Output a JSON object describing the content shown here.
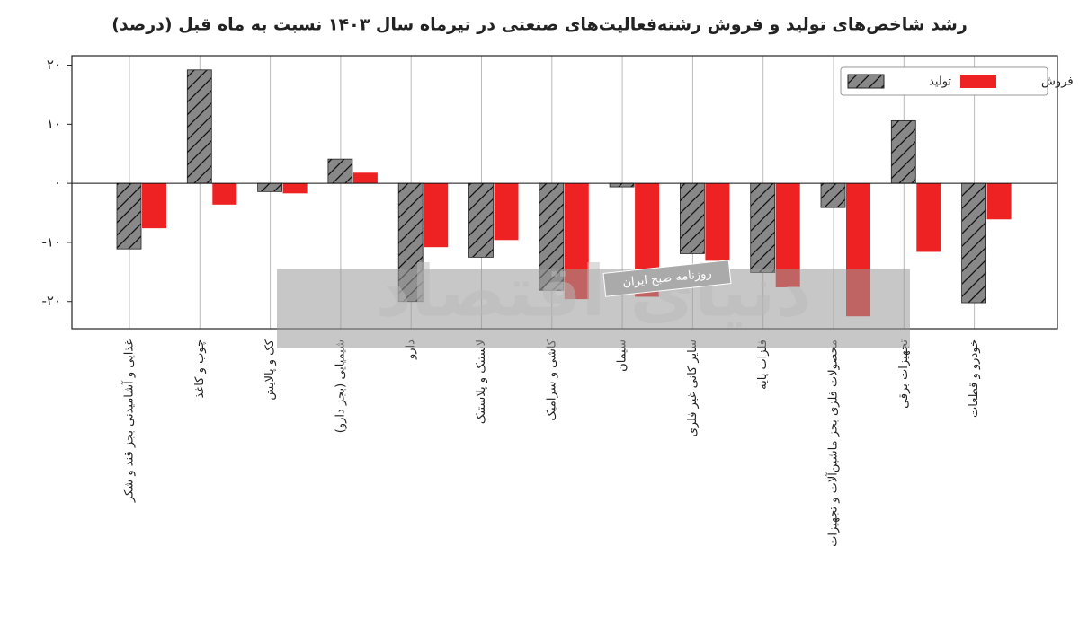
{
  "chart_data": {
    "type": "bar",
    "title": "رشد شاخص‌های تولید و فروش رشته‌فعالیت‌های صنعتی در تیرماه سال ۱۴۰۳ نسبت به ماه قبل (درصد)",
    "categories": [
      "غذایی و آشامیدنی بجز قند و شکر",
      "چوب و کاغذ",
      "کک و پالایش",
      "شیمیایی (بجز دارو)",
      "دارو",
      "لاستیک و پلاستیک",
      "کاشی و سرامیک",
      "سیمان",
      "سایر کانی غیر فلزی",
      "فلزات پایه",
      "محصولات فلزی بجز ماشین‌آلات و تجهیزات",
      "تجهیزات برقی",
      "خودرو و قطعات"
    ],
    "series": [
      {
        "name": "تولید",
        "color": "#888888",
        "hatch": true,
        "values": [
          -11.1,
          19.2,
          -1.4,
          4.1,
          -20,
          -12.5,
          -18.1,
          -0.6,
          -11.9,
          -15.1,
          -4.1,
          10.6,
          -20.2
        ]
      },
      {
        "name": "فروش",
        "color": "#ee2222",
        "hatch": false,
        "values": [
          -7.6,
          -3.6,
          -1.7,
          1.8,
          -10.8,
          -9.6,
          -19.6,
          -19.2,
          -13.1,
          -17.6,
          -22.5,
          -11.6,
          -6.1
        ]
      }
    ],
    "ylim": [
      -24.6,
      21.6
    ],
    "yticks": [
      {
        "value": -20,
        "label": "-۲۰"
      },
      {
        "value": -10,
        "label": "-۱۰"
      },
      {
        "value": 0,
        "label": "۰"
      },
      {
        "value": 10,
        "label": "۱۰"
      },
      {
        "value": 20,
        "label": "۲۰"
      }
    ],
    "grid": true,
    "legend": "upper right",
    "watermark": "دنیای اقتصاد",
    "watermark_caption": "روزنامه صبح ایران"
  }
}
